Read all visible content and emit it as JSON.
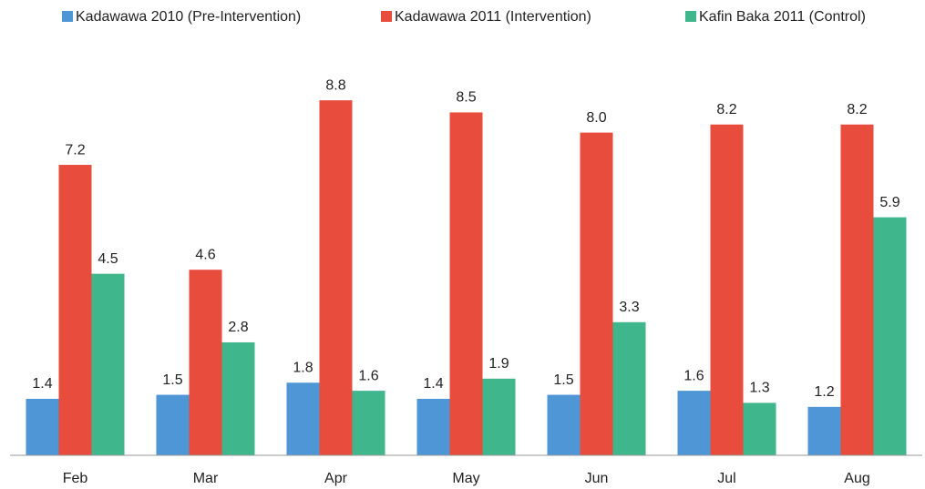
{
  "chart_data": {
    "type": "bar",
    "categories": [
      "Feb",
      "Mar",
      "Apr",
      "May",
      "Jun",
      "Jul",
      "Aug"
    ],
    "series": [
      {
        "name": "Kadawawa 2010 (Pre-Intervention)",
        "color": "#4e96d6",
        "values": [
          1.4,
          1.5,
          1.8,
          1.4,
          1.5,
          1.6,
          1.2
        ],
        "value_labels": [
          "1.4",
          "1.5",
          "1.8",
          "1.4",
          "1.5",
          "1.6",
          "1.2"
        ]
      },
      {
        "name": "Kadawawa 2011 (Intervention)",
        "color": "#e84c3d",
        "values": [
          7.2,
          4.6,
          8.8,
          8.5,
          8.0,
          8.2,
          8.2
        ],
        "value_labels": [
          "7.2",
          "4.6",
          "8.8",
          "8.5",
          "8.0",
          "8.2",
          "8.2"
        ]
      },
      {
        "name": "Kafin Baka 2011 (Control)",
        "color": "#3fb68c",
        "values": [
          4.5,
          2.8,
          1.6,
          1.9,
          3.3,
          1.3,
          5.9
        ],
        "value_labels": [
          "4.5",
          "2.8",
          "1.6",
          "1.9",
          "3.3",
          "1.3",
          "5.9"
        ]
      }
    ],
    "ylim": [
      0,
      10
    ]
  }
}
